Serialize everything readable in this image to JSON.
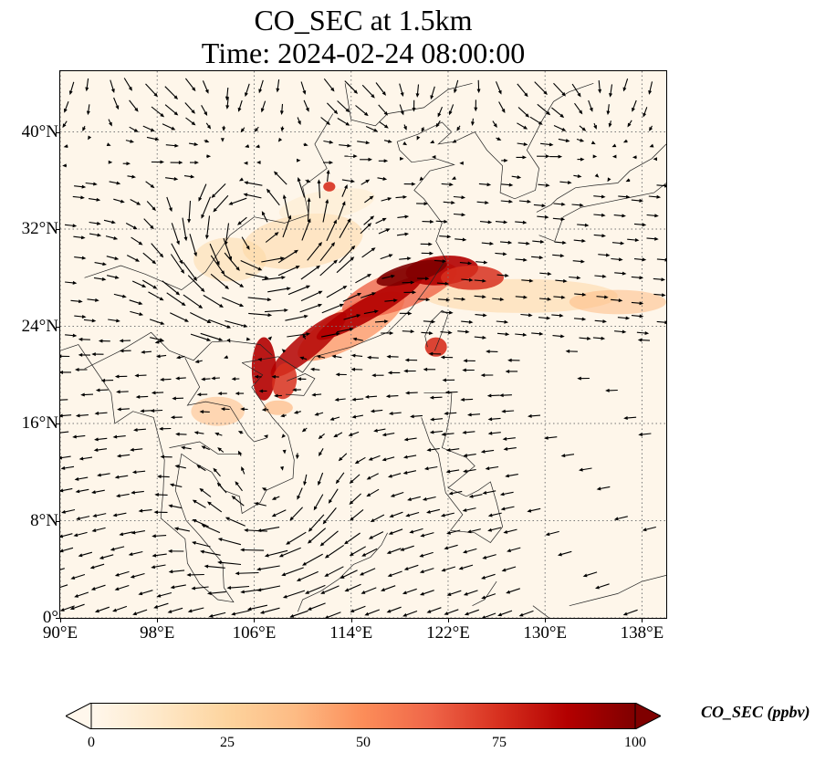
{
  "title": {
    "line1": "CO_SEC at 1.5km",
    "line2": "Time: 2024-02-24 08:00:00"
  },
  "map": {
    "lon_range": [
      90,
      140
    ],
    "lat_range": [
      0,
      45
    ],
    "x_ticks": [
      "90°E",
      "98°E",
      "106°E",
      "114°E",
      "122°E",
      "130°E",
      "138°E"
    ],
    "y_ticks": [
      "0°",
      "8°N",
      "16°N",
      "24°N",
      "32°N",
      "40°N"
    ],
    "gridlines": "dotted",
    "field": "CO_SEC",
    "overlay": "wind vectors (quiver)"
  },
  "colorbar": {
    "title": "CO_SEC (ppbv)",
    "colormap": "OrRd",
    "min": 0,
    "max": 100,
    "extend": "both",
    "tick_labels": [
      "0",
      "25",
      "50",
      "75",
      "100"
    ],
    "colors": [
      "#fff7ec",
      "#fee8c8",
      "#fdd49e",
      "#fdbb84",
      "#fc8d59",
      "#ef6548",
      "#d7301f",
      "#b30000",
      "#7f0000"
    ]
  }
}
